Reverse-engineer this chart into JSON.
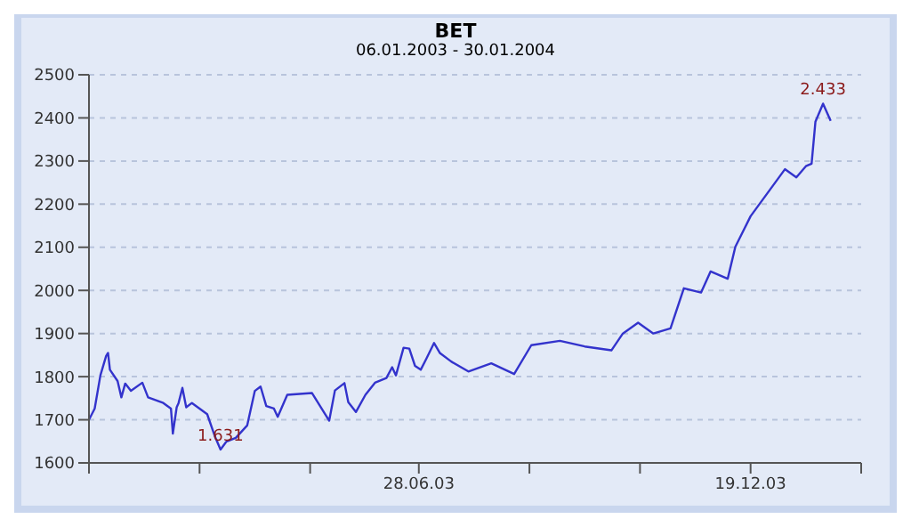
{
  "chart_data": {
    "type": "line",
    "title": "BET",
    "subtitle": "06.01.2003 - 30.01.2004",
    "x": [
      "2003-01-06",
      "2003-01-09",
      "2003-01-12",
      "2003-01-15",
      "2003-01-16",
      "2003-01-17",
      "2003-01-21",
      "2003-01-23",
      "2003-01-25",
      "2003-01-28",
      "2003-02-03",
      "2003-02-06",
      "2003-02-14",
      "2003-02-18",
      "2003-02-19",
      "2003-02-21",
      "2003-02-22",
      "2003-02-24",
      "2003-02-26",
      "2003-03-01",
      "2003-03-09",
      "2003-03-13",
      "2003-03-16",
      "2003-03-19",
      "2003-03-24",
      "2003-03-30",
      "2003-04-03",
      "2003-04-06",
      "2003-04-09",
      "2003-04-13",
      "2003-04-15",
      "2003-04-20",
      "2003-05-03",
      "2003-05-12",
      "2003-05-15",
      "2003-05-20",
      "2003-05-22",
      "2003-05-26",
      "2003-05-31",
      "2003-06-05",
      "2003-06-11",
      "2003-06-14",
      "2003-06-16",
      "2003-06-20",
      "2003-06-23",
      "2003-06-26",
      "2003-06-29",
      "2003-07-02",
      "2003-07-06",
      "2003-07-09",
      "2003-07-15",
      "2003-07-24",
      "2003-08-05",
      "2003-08-17",
      "2003-08-26",
      "2003-09-10",
      "2003-09-23",
      "2003-10-07",
      "2003-10-13",
      "2003-10-21",
      "2003-10-29",
      "2003-11-07",
      "2003-11-14",
      "2003-11-23",
      "2003-11-28",
      "2003-12-07",
      "2003-12-11",
      "2003-12-19",
      "2004-01-06",
      "2004-01-12",
      "2004-01-17",
      "2004-01-20",
      "2004-01-22",
      "2004-01-26",
      "2004-01-30"
    ],
    "series": [
      {
        "color": "#3333cc",
        "values": [
          1700,
          1726,
          1803,
          1848,
          1855,
          1816,
          1790,
          1752,
          1784,
          1767,
          1786,
          1752,
          1739,
          1726,
          1668,
          1729,
          1739,
          1774,
          1729,
          1739,
          1713,
          1662,
          1631,
          1649,
          1658,
          1687,
          1767,
          1777,
          1732,
          1726,
          1707,
          1758,
          1762,
          1698,
          1768,
          1785,
          1741,
          1718,
          1758,
          1786,
          1797,
          1822,
          1803,
          1867,
          1865,
          1825,
          1816,
          1842,
          1878,
          1855,
          1835,
          1812,
          1831,
          1806,
          1873,
          1883,
          1870,
          1861,
          1900,
          1925,
          1900,
          1912,
          2005,
          1995,
          2044,
          2027,
          2101,
          2172,
          2281,
          2262,
          2288,
          2294,
          2391,
          2433,
          2393
        ]
      }
    ],
    "xlim": [
      "2003-01-06",
      "2004-02-15"
    ],
    "xticks": [
      {
        "value": "2003-01-06",
        "label": null
      },
      {
        "value": "2003-03-05",
        "label": null
      },
      {
        "value": "2003-05-02",
        "label": null
      },
      {
        "value": "2003-06-28",
        "label": "28.06.03"
      },
      {
        "value": "2003-08-25",
        "label": null
      },
      {
        "value": "2003-10-22",
        "label": null
      },
      {
        "value": "2003-12-19",
        "label": "19.12.03"
      },
      {
        "value": "2004-02-15",
        "label": null
      }
    ],
    "ylim": [
      1600,
      2500
    ],
    "yticks": [
      1600,
      1700,
      1800,
      1900,
      2000,
      2100,
      2200,
      2300,
      2400,
      2500
    ],
    "grid": "y",
    "marker": "none",
    "line_style": "solid",
    "annotations": [
      {
        "text": "1.631",
        "x": "2003-03-16",
        "y": 1631
      },
      {
        "text": "2.433",
        "x": "2004-01-26",
        "y": 2433
      }
    ]
  }
}
